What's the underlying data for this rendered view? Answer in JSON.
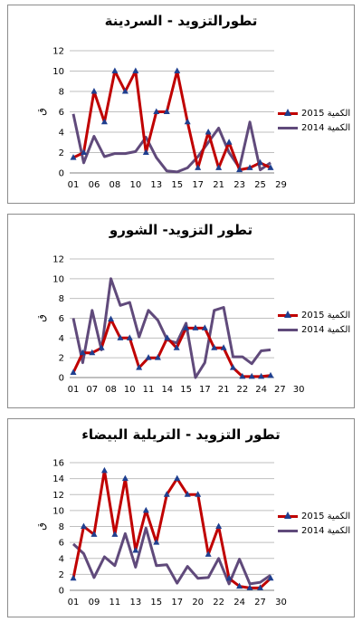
{
  "colors": {
    "red": "#c00000",
    "purple": "#604a7b",
    "marker": "#1f3f8f",
    "grid": "#bfbfbf"
  },
  "chart_data": [
    {
      "type": "line",
      "title": "تطورالتزويد - السردينة",
      "ylabel": "ق",
      "ylim": [
        0,
        12
      ],
      "yticks": [
        "0",
        "2",
        "4",
        "6",
        "8",
        "10",
        "12"
      ],
      "x_tick_labels": [
        "01",
        "06",
        "08",
        "10",
        "13",
        "15",
        "17",
        "21",
        "23",
        "25",
        "29"
      ],
      "grid": "horizontal",
      "legend_position": "right",
      "series": [
        {
          "name": "2015 الكمية",
          "values": [
            1.5,
            2,
            8,
            5,
            10,
            8,
            10,
            2,
            6,
            6,
            10,
            5,
            0.5,
            4,
            0.5,
            3,
            0.3,
            0.5,
            1,
            0.5
          ]
        },
        {
          "name": "2014 الكمية",
          "values": [
            5.8,
            1,
            3.6,
            1.6,
            1.9,
            1.9,
            2.1,
            3.5,
            1.5,
            0.2,
            0.1,
            0.5,
            1.6,
            3,
            4.4,
            2,
            0.5,
            5,
            0.3,
            1
          ]
        }
      ]
    },
    {
      "type": "line",
      "title": "تطور التزويد- الشورو",
      "ylabel": "ق",
      "ylim": [
        0,
        12
      ],
      "yticks": [
        "0",
        "2",
        "4",
        "6",
        "8",
        "10",
        "12"
      ],
      "x_tick_labels": [
        "01",
        "07",
        "08",
        "10",
        "11",
        "14",
        "15",
        "17",
        "21",
        "22",
        "24",
        "27",
        "30"
      ],
      "grid": "horizontal",
      "legend_position": "right",
      "series": [
        {
          "name": "2015 الكمية",
          "values": [
            0.5,
            2.5,
            2.5,
            3,
            5.9,
            4,
            4,
            1,
            2,
            2,
            4,
            3,
            5,
            5,
            5,
            3,
            3,
            1,
            0.1,
            0.1,
            0.1,
            0.2
          ]
        },
        {
          "name": "2014 الكمية",
          "values": [
            6,
            1.5,
            6.8,
            2.8,
            10,
            7.3,
            7.6,
            4.1,
            6.8,
            5.8,
            3.8,
            3.5,
            5.5,
            0,
            1.5,
            6.8,
            7.1,
            2.1,
            2.1,
            1.4,
            2.7,
            2.8
          ]
        }
      ]
    },
    {
      "type": "line",
      "title": "تطور التزويد - التريلية البيضاء",
      "ylabel": "ق",
      "ylim": [
        0,
        16
      ],
      "yticks": [
        "0",
        "2",
        "4",
        "6",
        "8",
        "10",
        "12",
        "14",
        "16"
      ],
      "x_tick_labels": [
        "01",
        "09",
        "11",
        "13",
        "15",
        "17",
        "20",
        "22",
        "24",
        "27",
        "30"
      ],
      "grid": "horizontal",
      "legend_position": "right",
      "series": [
        {
          "name": "2015 الكمية",
          "values": [
            1.5,
            8,
            7,
            15,
            7,
            14,
            5,
            10,
            6,
            12,
            14,
            12,
            12,
            4.5,
            8,
            1.5,
            0.5,
            0.3,
            0.3,
            1.5
          ]
        },
        {
          "name": "2014 الكمية",
          "values": [
            5.8,
            4.6,
            1.6,
            4.2,
            3.1,
            7.1,
            2.9,
            7.8,
            3.1,
            3.2,
            0.9,
            3,
            1.5,
            1.6,
            4,
            0.8,
            3.9,
            0.8,
            1,
            1.9
          ]
        }
      ]
    }
  ]
}
